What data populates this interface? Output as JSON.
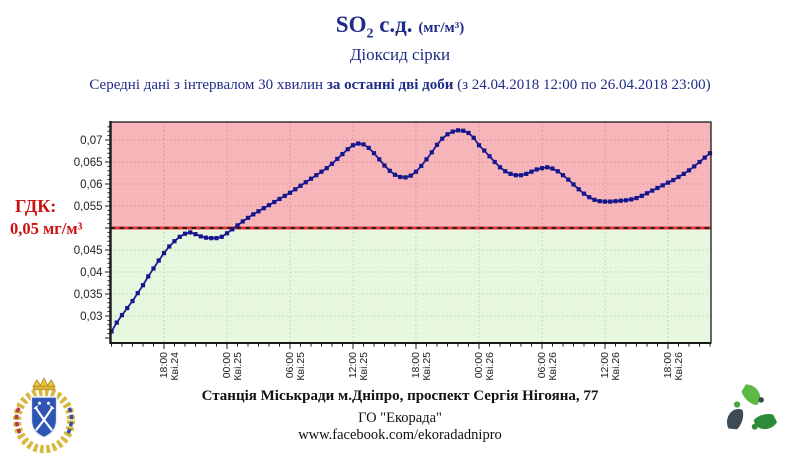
{
  "header": {
    "title_so": "SO",
    "title_sub": "2",
    "title_rest": " с.д. ",
    "title_unit": "(мг/м³)",
    "subtitle": "Діоксид сірки",
    "desc_prefix": "Середні дані з інтервалом 30 хвилин ",
    "desc_bold": "за останні дві доби",
    "desc_suffix": " (з 24.04.2018 12:00 по 26.04.2018 23:00)"
  },
  "gdk": {
    "label": "ГДК:",
    "value": "0,05 мг/м³"
  },
  "footer": {
    "station": "Станція Міськради м.Дніпро, проспект Сергія Нігояна, 77",
    "org": "ГО \"Екорада\"",
    "url": "www.facebook.com/ekoradadnipro"
  },
  "logos": {
    "left": "dnipro-city-coat-of-arms",
    "right": "ekorada-logo"
  },
  "chart_data": {
    "type": "line",
    "title": "SO2 с.д. (мг/м³) — Діоксид сірки",
    "xlabel": "",
    "ylabel": "мг/м³",
    "ylim": [
      0.024,
      0.074
    ],
    "grid": "dotted",
    "legend_position": "none",
    "threshold": 0.05,
    "threshold_label": "ГДК: 0,05 мг/м³",
    "series_start": "24.04.2018 13:00",
    "interval_minutes": 30,
    "values": [
      0.0265,
      0.0285,
      0.0302,
      0.0318,
      0.0334,
      0.0352,
      0.037,
      0.039,
      0.0408,
      0.0426,
      0.0443,
      0.0458,
      0.047,
      0.048,
      0.0487,
      0.049,
      0.0486,
      0.0481,
      0.0478,
      0.0477,
      0.0477,
      0.048,
      0.0488,
      0.0497,
      0.0506,
      0.0515,
      0.0523,
      0.0531,
      0.0538,
      0.0545,
      0.0552,
      0.0559,
      0.0566,
      0.0573,
      0.058,
      0.0588,
      0.0596,
      0.0604,
      0.0612,
      0.062,
      0.0628,
      0.0636,
      0.0646,
      0.0657,
      0.0668,
      0.0679,
      0.0688,
      0.0692,
      0.069,
      0.0682,
      0.067,
      0.0656,
      0.0642,
      0.063,
      0.0621,
      0.0616,
      0.0615,
      0.0619,
      0.0628,
      0.0641,
      0.0656,
      0.0672,
      0.0689,
      0.0703,
      0.0713,
      0.0719,
      0.0722,
      0.0721,
      0.0716,
      0.0705,
      0.0688,
      0.0676,
      0.0663,
      0.065,
      0.0638,
      0.0629,
      0.0623,
      0.062,
      0.062,
      0.0623,
      0.0628,
      0.0633,
      0.0636,
      0.0638,
      0.0635,
      0.0629,
      0.062,
      0.061,
      0.0599,
      0.0588,
      0.0578,
      0.057,
      0.0564,
      0.0561,
      0.056,
      0.056,
      0.0561,
      0.0562,
      0.0563,
      0.0565,
      0.0568,
      0.0573,
      0.0579,
      0.0585,
      0.0591,
      0.0597,
      0.0603,
      0.0609,
      0.0616,
      0.0623,
      0.0631,
      0.064,
      0.065,
      0.066,
      0.067
    ],
    "y_ticks": [
      {
        "label": "0,07",
        "v": 0.07
      },
      {
        "label": "0,065",
        "v": 0.065
      },
      {
        "label": "0,06",
        "v": 0.06
      },
      {
        "label": "0,055",
        "v": 0.055
      },
      {
        "label": "0,045",
        "v": 0.045
      },
      {
        "label": "0,04",
        "v": 0.04
      },
      {
        "label": "0,035",
        "v": 0.035
      },
      {
        "label": "0,03",
        "v": 0.03
      }
    ],
    "x_ticks": [
      {
        "time": "18:00",
        "date": "Кві.24",
        "hour": 5
      },
      {
        "time": "00:00",
        "date": "Кві.25",
        "hour": 11
      },
      {
        "time": "06:00",
        "date": "Кві.25",
        "hour": 17
      },
      {
        "time": "12:00",
        "date": "Кві.25",
        "hour": 23
      },
      {
        "time": "18:00",
        "date": "Кві.25",
        "hour": 29
      },
      {
        "time": "00:00",
        "date": "Кві.26",
        "hour": 35
      },
      {
        "time": "06:00",
        "date": "Кві.26",
        "hour": 41
      },
      {
        "time": "12:00",
        "date": "Кві.26",
        "hour": 47
      },
      {
        "time": "18:00",
        "date": "Кві.26",
        "hour": 53
      }
    ],
    "colors": {
      "line": "#1d1d9c",
      "marker": "#16168c",
      "above_fill": "#f6b6ba",
      "below_fill": "#e7f7e0",
      "grid_above": "#dd8f97",
      "grid_above_minor": "#eba6ac",
      "grid_below": "#b9dcb0",
      "grid_below_minor": "#d2ecc8",
      "threshold": "#e03535",
      "threshold_dash": "#1a1a1a",
      "axis": "#1a1a1a"
    }
  }
}
